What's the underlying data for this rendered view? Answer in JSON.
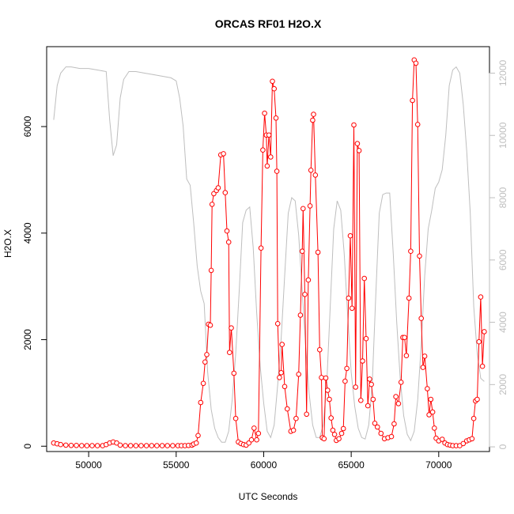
{
  "chart_data": {
    "type": "line",
    "title": "ORCAS RF01 H2O.X",
    "xlabel": "UTC Seconds",
    "ylabel": "H2O.X",
    "xlim": [
      47600,
      72900
    ],
    "ylim": [
      -100,
      7500
    ],
    "y2lim": [
      -150,
      12850
    ],
    "x_ticks": [
      50000,
      55000,
      60000,
      65000,
      70000
    ],
    "y_ticks": [
      0,
      2000,
      4000,
      6000
    ],
    "y2_ticks": [
      0,
      2000,
      4000,
      6000,
      8000,
      10000,
      12000
    ],
    "colors": {
      "h2o": "#ff0000",
      "altitude": "#bebebe",
      "axes": "#000000"
    },
    "series": [
      {
        "name": "H2O.X",
        "color": "#ff0000",
        "marker": "circle",
        "points": [
          [
            48000,
            60
          ],
          [
            48200,
            45
          ],
          [
            48400,
            30
          ],
          [
            48700,
            20
          ],
          [
            49000,
            15
          ],
          [
            49300,
            15
          ],
          [
            49600,
            10
          ],
          [
            49900,
            10
          ],
          [
            50200,
            10
          ],
          [
            50500,
            10
          ],
          [
            50800,
            10
          ],
          [
            51000,
            30
          ],
          [
            51200,
            60
          ],
          [
            51400,
            80
          ],
          [
            51600,
            60
          ],
          [
            51800,
            20
          ],
          [
            52100,
            10
          ],
          [
            52400,
            10
          ],
          [
            52700,
            10
          ],
          [
            53000,
            10
          ],
          [
            53300,
            10
          ],
          [
            53600,
            10
          ],
          [
            53900,
            10
          ],
          [
            54200,
            10
          ],
          [
            54500,
            10
          ],
          [
            54800,
            10
          ],
          [
            55100,
            10
          ],
          [
            55300,
            10
          ],
          [
            55500,
            10
          ],
          [
            55700,
            15
          ],
          [
            55900,
            20
          ],
          [
            56000,
            40
          ],
          [
            56150,
            60
          ],
          [
            56250,
            200
          ],
          [
            56400,
            820
          ],
          [
            56550,
            1180
          ],
          [
            56650,
            1580
          ],
          [
            56750,
            1720
          ],
          [
            56850,
            2290
          ],
          [
            56950,
            2270
          ],
          [
            57000,
            3300
          ],
          [
            57050,
            4540
          ],
          [
            57150,
            4740
          ],
          [
            57300,
            4800
          ],
          [
            57400,
            4850
          ],
          [
            57550,
            5470
          ],
          [
            57700,
            5490
          ],
          [
            57800,
            4760
          ],
          [
            57900,
            4040
          ],
          [
            58000,
            3830
          ],
          [
            58050,
            1760
          ],
          [
            58150,
            2220
          ],
          [
            58300,
            1370
          ],
          [
            58400,
            520
          ],
          [
            58550,
            80
          ],
          [
            58700,
            50
          ],
          [
            58850,
            30
          ],
          [
            59000,
            20
          ],
          [
            59150,
            60
          ],
          [
            59300,
            120
          ],
          [
            59450,
            340
          ],
          [
            59600,
            120
          ],
          [
            59700,
            240
          ],
          [
            59850,
            3720
          ],
          [
            59950,
            5560
          ],
          [
            60050,
            6250
          ],
          [
            60150,
            5840
          ],
          [
            60200,
            5260
          ],
          [
            60300,
            5840
          ],
          [
            60400,
            5430
          ],
          [
            60500,
            6850
          ],
          [
            60600,
            6710
          ],
          [
            60700,
            6160
          ],
          [
            60750,
            5160
          ],
          [
            60800,
            2300
          ],
          [
            60900,
            1290
          ],
          [
            61000,
            1380
          ],
          [
            61050,
            1910
          ],
          [
            61200,
            1120
          ],
          [
            61350,
            700
          ],
          [
            61550,
            280
          ],
          [
            61700,
            300
          ],
          [
            61850,
            520
          ],
          [
            62000,
            1350
          ],
          [
            62100,
            2460
          ],
          [
            62200,
            3660
          ],
          [
            62250,
            4460
          ],
          [
            62350,
            2850
          ],
          [
            62450,
            600
          ],
          [
            62550,
            3120
          ],
          [
            62650,
            4510
          ],
          [
            62700,
            5180
          ],
          [
            62800,
            6120
          ],
          [
            62850,
            6230
          ],
          [
            62950,
            5090
          ],
          [
            63100,
            3640
          ],
          [
            63200,
            1810
          ],
          [
            63300,
            1290
          ],
          [
            63350,
            160
          ],
          [
            63450,
            140
          ],
          [
            63550,
            1280
          ],
          [
            63650,
            1050
          ],
          [
            63750,
            880
          ],
          [
            63850,
            530
          ],
          [
            63950,
            300
          ],
          [
            64050,
            220
          ],
          [
            64150,
            110
          ],
          [
            64300,
            140
          ],
          [
            64450,
            240
          ],
          [
            64550,
            330
          ],
          [
            64650,
            1220
          ],
          [
            64750,
            1460
          ],
          [
            64850,
            2780
          ],
          [
            64950,
            3950
          ],
          [
            65050,
            2590
          ],
          [
            65150,
            6030
          ],
          [
            65250,
            1110
          ],
          [
            65350,
            5680
          ],
          [
            65450,
            5550
          ],
          [
            65550,
            860
          ],
          [
            65650,
            1600
          ],
          [
            65750,
            3150
          ],
          [
            65850,
            2020
          ],
          [
            65950,
            760
          ],
          [
            66050,
            1260
          ],
          [
            66150,
            1160
          ],
          [
            66250,
            880
          ],
          [
            66350,
            430
          ],
          [
            66500,
            360
          ],
          [
            66700,
            240
          ],
          [
            66900,
            140
          ],
          [
            67100,
            160
          ],
          [
            67300,
            180
          ],
          [
            67450,
            420
          ],
          [
            67550,
            930
          ],
          [
            67700,
            800
          ],
          [
            67850,
            1200
          ],
          [
            67950,
            2040
          ],
          [
            68050,
            2040
          ],
          [
            68150,
            1700
          ],
          [
            68300,
            2780
          ],
          [
            68400,
            3660
          ],
          [
            68500,
            6490
          ],
          [
            68600,
            7250
          ],
          [
            68700,
            7190
          ],
          [
            68800,
            6040
          ],
          [
            68900,
            3570
          ],
          [
            69000,
            2400
          ],
          [
            69100,
            1480
          ],
          [
            69200,
            1690
          ],
          [
            69350,
            1080
          ],
          [
            69450,
            590
          ],
          [
            69550,
            880
          ],
          [
            69650,
            640
          ],
          [
            69750,
            340
          ],
          [
            69850,
            150
          ],
          [
            70000,
            100
          ],
          [
            70200,
            130
          ],
          [
            70350,
            60
          ],
          [
            70500,
            30
          ],
          [
            70650,
            20
          ],
          [
            70800,
            10
          ],
          [
            71000,
            10
          ],
          [
            71200,
            10
          ],
          [
            71400,
            50
          ],
          [
            71600,
            100
          ],
          [
            71750,
            120
          ],
          [
            71900,
            140
          ],
          [
            72000,
            520
          ],
          [
            72100,
            850
          ],
          [
            72200,
            880
          ],
          [
            72300,
            1960
          ],
          [
            72400,
            2800
          ],
          [
            72500,
            1500
          ],
          [
            72600,
            2150
          ]
        ]
      },
      {
        "name": "",
        "axis": "right",
        "color": "#bebebe",
        "points": [
          [
            48000,
            10500
          ],
          [
            48200,
            11600
          ],
          [
            48400,
            12000
          ],
          [
            48700,
            12200
          ],
          [
            49000,
            12200
          ],
          [
            49500,
            12150
          ],
          [
            50000,
            12150
          ],
          [
            50500,
            12100
          ],
          [
            51000,
            12050
          ],
          [
            51200,
            10500
          ],
          [
            51400,
            9350
          ],
          [
            51600,
            9700
          ],
          [
            51800,
            11200
          ],
          [
            52000,
            11800
          ],
          [
            52300,
            12050
          ],
          [
            52700,
            12050
          ],
          [
            53200,
            12000
          ],
          [
            53700,
            11950
          ],
          [
            54200,
            11900
          ],
          [
            54700,
            11850
          ],
          [
            55000,
            11750
          ],
          [
            55200,
            11200
          ],
          [
            55400,
            10300
          ],
          [
            55600,
            8600
          ],
          [
            55800,
            8400
          ],
          [
            56000,
            7200
          ],
          [
            56200,
            5800
          ],
          [
            56400,
            5000
          ],
          [
            56600,
            4600
          ],
          [
            56800,
            2400
          ],
          [
            57000,
            1200
          ],
          [
            57200,
            600
          ],
          [
            57400,
            300
          ],
          [
            57600,
            150
          ],
          [
            57800,
            150
          ],
          [
            58000,
            500
          ],
          [
            58200,
            1500
          ],
          [
            58400,
            3000
          ],
          [
            58600,
            5000
          ],
          [
            58800,
            7200
          ],
          [
            59000,
            7600
          ],
          [
            59200,
            7700
          ],
          [
            59400,
            6400
          ],
          [
            59600,
            4300
          ],
          [
            59800,
            2600
          ],
          [
            60000,
            1400
          ],
          [
            60200,
            500
          ],
          [
            60400,
            300
          ],
          [
            60600,
            700
          ],
          [
            60800,
            2000
          ],
          [
            61000,
            3500
          ],
          [
            61200,
            5500
          ],
          [
            61400,
            7500
          ],
          [
            61600,
            8000
          ],
          [
            61800,
            7900
          ],
          [
            62000,
            6800
          ],
          [
            62200,
            5000
          ],
          [
            62400,
            3200
          ],
          [
            62600,
            1700
          ],
          [
            62800,
            700
          ],
          [
            63000,
            300
          ],
          [
            63200,
            300
          ],
          [
            63400,
            700
          ],
          [
            63600,
            2000
          ],
          [
            63800,
            4500
          ],
          [
            64000,
            7000
          ],
          [
            64200,
            7900
          ],
          [
            64400,
            7600
          ],
          [
            64600,
            6200
          ],
          [
            64800,
            4200
          ],
          [
            65000,
            2400
          ],
          [
            65200,
            1300
          ],
          [
            65400,
            600
          ],
          [
            65600,
            300
          ],
          [
            65800,
            250
          ],
          [
            66000,
            700
          ],
          [
            66200,
            2000
          ],
          [
            66400,
            4800
          ],
          [
            66600,
            7500
          ],
          [
            66800,
            8100
          ],
          [
            67000,
            8150
          ],
          [
            67200,
            8150
          ],
          [
            67400,
            6200
          ],
          [
            67600,
            4000
          ],
          [
            67800,
            2200
          ],
          [
            68000,
            1000
          ],
          [
            68200,
            400
          ],
          [
            68400,
            200
          ],
          [
            68600,
            500
          ],
          [
            68800,
            1500
          ],
          [
            69000,
            3300
          ],
          [
            69200,
            5500
          ],
          [
            69400,
            7000
          ],
          [
            69600,
            7600
          ],
          [
            69800,
            8300
          ],
          [
            70000,
            8500
          ],
          [
            70200,
            8900
          ],
          [
            70400,
            10000
          ],
          [
            70600,
            11600
          ],
          [
            70800,
            12100
          ],
          [
            71000,
            12200
          ],
          [
            71200,
            12000
          ],
          [
            71400,
            11000
          ],
          [
            71600,
            9500
          ],
          [
            71800,
            7500
          ],
          [
            72000,
            4500
          ],
          [
            72200,
            3000
          ],
          [
            72400,
            2200
          ],
          [
            72600,
            2100
          ]
        ]
      }
    ]
  }
}
